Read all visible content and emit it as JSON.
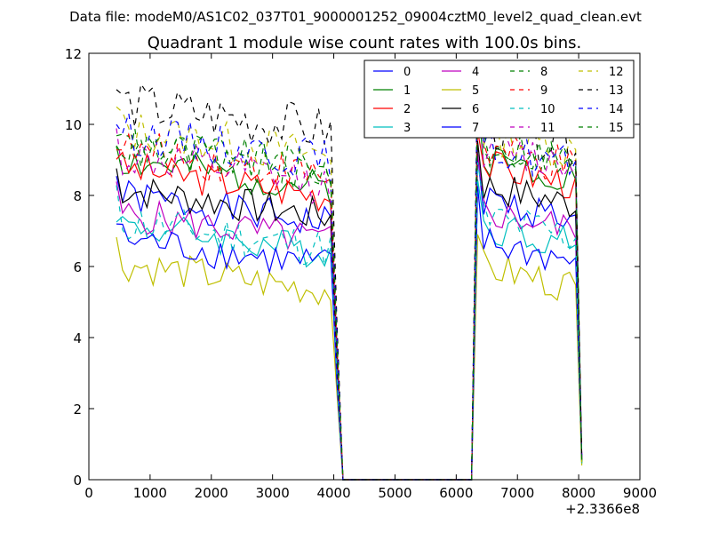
{
  "chart_data": {
    "type": "line",
    "suptitle": "Data file: modeM0/AS1C02_037T01_9000001252_09004cztM0_level2_quad_clean.evt",
    "title": "Quadrant 1 module wise count rates with 100.0s bins.",
    "xlabel": "",
    "ylabel": "",
    "x_offset_label": "+2.3366e8",
    "xlim": [
      0,
      9000
    ],
    "ylim": [
      0,
      12
    ],
    "x_ticks": [
      0,
      1000,
      2000,
      3000,
      4000,
      5000,
      6000,
      7000,
      8000,
      9000
    ],
    "y_ticks": [
      0,
      2,
      4,
      6,
      8,
      10,
      12
    ],
    "segments": [
      {
        "x_start": 450,
        "x_end": 3950,
        "step": 100
      },
      {
        "x_start": 6350,
        "x_end": 8050,
        "step": 100
      }
    ],
    "x_gap": [
      4050,
      4150,
      6250
    ],
    "legend_position": "top-right",
    "series": [
      {
        "name": "0",
        "color": "#0000ff",
        "dash": false,
        "level1": 7.4,
        "level2": 7.5,
        "amp": 0.25,
        "seed": 1
      },
      {
        "name": "1",
        "color": "#008000",
        "dash": false,
        "level1": 8.4,
        "level2": 8.7,
        "amp": 0.25,
        "seed": 2
      },
      {
        "name": "2",
        "color": "#ff0000",
        "dash": false,
        "level1": 8.2,
        "level2": 8.5,
        "amp": 0.25,
        "seed": 3
      },
      {
        "name": "3",
        "color": "#00bfbf",
        "dash": false,
        "level1": 6.6,
        "level2": 6.8,
        "amp": 0.25,
        "seed": 4
      },
      {
        "name": "4",
        "color": "#bf00bf",
        "dash": false,
        "level1": 6.9,
        "level2": 7.2,
        "amp": 0.25,
        "seed": 5
      },
      {
        "name": "5",
        "color": "#bfbf00",
        "dash": false,
        "level1": 5.5,
        "level2": 5.6,
        "amp": 0.25,
        "seed": 6
      },
      {
        "name": "6",
        "color": "#000000",
        "dash": false,
        "level1": 7.6,
        "level2": 7.9,
        "amp": 0.25,
        "seed": 7
      },
      {
        "name": "7",
        "color": "#0000ff",
        "dash": false,
        "level1": 6.2,
        "level2": 6.3,
        "amp": 0.25,
        "seed": 8
      },
      {
        "name": "8",
        "color": "#008000",
        "dash": true,
        "level1": 8.9,
        "level2": 9.0,
        "amp": 0.3,
        "seed": 9
      },
      {
        "name": "9",
        "color": "#ff0000",
        "dash": true,
        "level1": 8.7,
        "level2": 8.9,
        "amp": 0.3,
        "seed": 10
      },
      {
        "name": "10",
        "color": "#00bfbf",
        "dash": true,
        "level1": 6.7,
        "level2": 7.0,
        "amp": 0.3,
        "seed": 11
      },
      {
        "name": "11",
        "color": "#bf00bf",
        "dash": true,
        "level1": 8.5,
        "level2": 9.0,
        "amp": 0.3,
        "seed": 12
      },
      {
        "name": "12",
        "color": "#bfbf00",
        "dash": true,
        "level1": 9.3,
        "level2": 9.4,
        "amp": 0.3,
        "seed": 13
      },
      {
        "name": "13",
        "color": "#000000",
        "dash": true,
        "level1": 10.0,
        "level2": 9.6,
        "amp": 0.35,
        "seed": 14
      },
      {
        "name": "14",
        "color": "#0000ff",
        "dash": true,
        "level1": 9.2,
        "level2": 9.0,
        "amp": 0.3,
        "seed": 15
      },
      {
        "name": "15",
        "color": "#008000",
        "dash": true,
        "level1": 8.8,
        "level2": 9.1,
        "amp": 0.3,
        "seed": 16
      }
    ]
  }
}
